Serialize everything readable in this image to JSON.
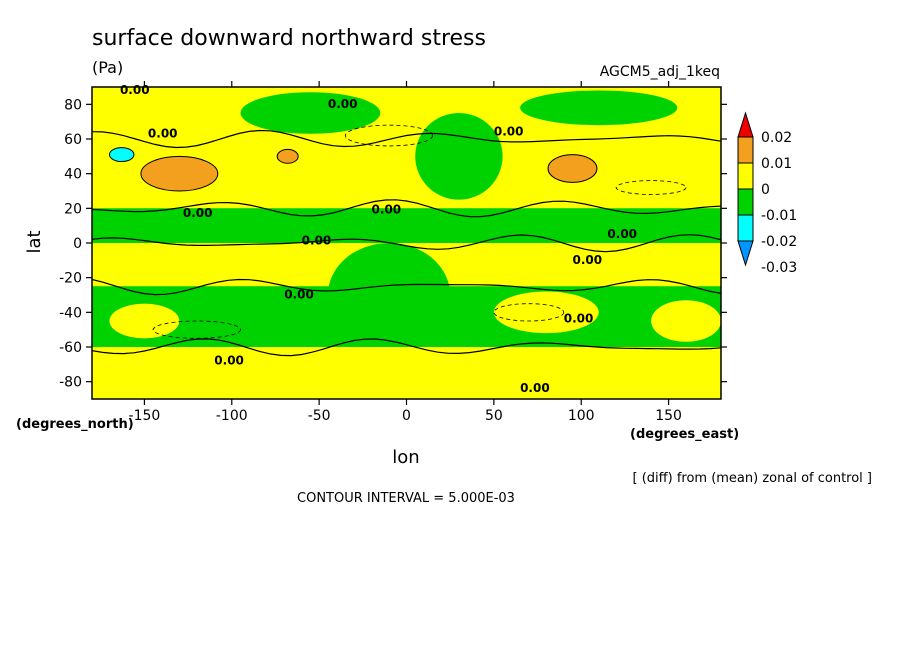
{
  "chart_data": {
    "type": "heatmap",
    "title": "surface downward northward stress",
    "units": "(Pa)",
    "run_label": "AGCM5_adj_1keq",
    "xlabel": "lon",
    "ylabel": "lat",
    "x_unit_label": "(degrees_east)",
    "y_unit_label": "(degrees_north)",
    "xlim": [
      -180,
      180
    ],
    "ylim": [
      -90,
      90
    ],
    "x_ticks": [
      -150,
      -100,
      -50,
      0,
      50,
      100,
      150
    ],
    "y_ticks": [
      -80,
      -60,
      -40,
      -20,
      0,
      20,
      40,
      60,
      80
    ],
    "note": "[ (diff) from (mean) zonal of control ]",
    "contour_interval_text": "CONTOUR INTERVAL = 5.000E-03",
    "contour_labels": [
      "0.00",
      "0.00",
      "0.00",
      "0.00",
      "0.00",
      "0.00",
      "0.00",
      "0.00",
      "0.00",
      "0.00",
      "0.00",
      "0.00",
      "0.00"
    ],
    "legend": {
      "placement": "right",
      "tick_labels": [
        "0.02",
        "0.01",
        "0",
        "-0.01",
        "-0.02",
        "-0.03"
      ],
      "colors": [
        "#f00000",
        "#f4a01f",
        "#ffff00",
        "#00d200",
        "#00ffff",
        "#0096ff"
      ]
    },
    "colors": {
      "positive_small": "#ffff00",
      "negative_small": "#00d200",
      "positive_mid": "#f4a01f",
      "negative_mid": "#00ffff"
    },
    "fields": {
      "bands": [
        {
          "lat": [
            60,
            90
          ],
          "lon": [
            -180,
            180
          ],
          "level": "positive_small"
        },
        {
          "lat": [
            20,
            60
          ],
          "lon": [
            -180,
            180
          ],
          "level": "positive_small"
        },
        {
          "lat": [
            0,
            20
          ],
          "lon": [
            -180,
            180
          ],
          "level": "negative_small"
        },
        {
          "lat": [
            -25,
            0
          ],
          "lon": [
            -180,
            180
          ],
          "level": "positive_small"
        },
        {
          "lat": [
            -60,
            -25
          ],
          "lon": [
            -180,
            180
          ],
          "level": "negative_small"
        },
        {
          "lat": [
            -90,
            -60
          ],
          "lon": [
            -180,
            180
          ],
          "level": "positive_small"
        }
      ],
      "blobs": [
        {
          "lon": -130,
          "lat": 40,
          "rlon": 22,
          "rlat": 10,
          "level": "positive_mid"
        },
        {
          "lon": 95,
          "lat": 43,
          "rlon": 14,
          "rlat": 8,
          "level": "positive_mid"
        },
        {
          "lon": -68,
          "lat": 50,
          "rlon": 6,
          "rlat": 4,
          "level": "positive_mid"
        },
        {
          "lon": -163,
          "lat": 51,
          "rlon": 7,
          "rlat": 4,
          "level": "negative_mid"
        },
        {
          "lon": -55,
          "lat": 75,
          "rlon": 40,
          "rlat": 12,
          "level": "negative_small"
        },
        {
          "lon": 110,
          "lat": 78,
          "rlon": 45,
          "rlat": 10,
          "level": "negative_small"
        },
        {
          "lon": 30,
          "lat": 50,
          "rlon": 25,
          "rlat": 25,
          "level": "negative_small"
        },
        {
          "lon": -10,
          "lat": -30,
          "rlon": 35,
          "rlat": 30,
          "level": "negative_small"
        },
        {
          "lon": 80,
          "lat": -40,
          "rlon": 30,
          "rlat": 12,
          "level": "positive_small"
        },
        {
          "lon": 160,
          "lat": -45,
          "rlon": 20,
          "rlat": 12,
          "level": "positive_small"
        },
        {
          "lon": -150,
          "lat": -45,
          "rlon": 20,
          "rlat": 10,
          "level": "positive_small"
        }
      ]
    }
  }
}
